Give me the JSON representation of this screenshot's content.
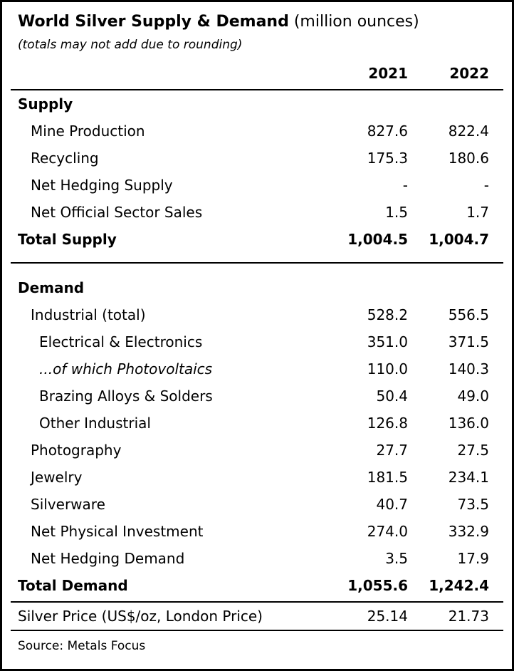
{
  "chart_data": {
    "type": "table",
    "title": "World Silver Supply & Demand",
    "title_unit": "(million ounces)",
    "note": "(totals may not add due to rounding)",
    "columns": [
      "2021",
      "2022"
    ],
    "supply": {
      "header": "Supply",
      "rows": [
        {
          "label": "Mine Production",
          "y2021": "827.6",
          "y2022": "822.4"
        },
        {
          "label": "Recycling",
          "y2021": "175.3",
          "y2022": "180.6"
        },
        {
          "label": "Net Hedging Supply",
          "y2021": "-",
          "y2022": "-"
        },
        {
          "label": "Net Official Sector Sales",
          "y2021": "1.5",
          "y2022": "1.7"
        }
      ],
      "total": {
        "label": "Total Supply",
        "y2021": "1,004.5",
        "y2022": "1,004.7"
      }
    },
    "demand": {
      "header": "Demand",
      "rows": [
        {
          "label": "Industrial (total)",
          "y2021": "528.2",
          "y2022": "556.5"
        },
        {
          "label": "Electrical & Electronics",
          "y2021": "351.0",
          "y2022": "371.5"
        },
        {
          "label": "...of which Photovoltaics",
          "y2021": "110.0",
          "y2022": "140.3"
        },
        {
          "label": "Brazing Alloys & Solders",
          "y2021": "50.4",
          "y2022": "49.0"
        },
        {
          "label": "Other Industrial",
          "y2021": "126.8",
          "y2022": "136.0"
        },
        {
          "label": "Photography",
          "y2021": "27.7",
          "y2022": "27.5"
        },
        {
          "label": "Jewelry",
          "y2021": "181.5",
          "y2022": "234.1"
        },
        {
          "label": "Silverware",
          "y2021": "40.7",
          "y2022": "73.5"
        },
        {
          "label": "Net Physical Investment",
          "y2021": "274.0",
          "y2022": "332.9"
        },
        {
          "label": "Net Hedging Demand",
          "y2021": "3.5",
          "y2022": "17.9"
        }
      ],
      "total": {
        "label": "Total Demand",
        "y2021": "1,055.6",
        "y2022": "1,242.4"
      }
    },
    "price": {
      "label": "Silver Price (US$/oz, London Price)",
      "y2021": "25.14",
      "y2022": "21.73"
    },
    "source": "Source: Metals Focus"
  }
}
